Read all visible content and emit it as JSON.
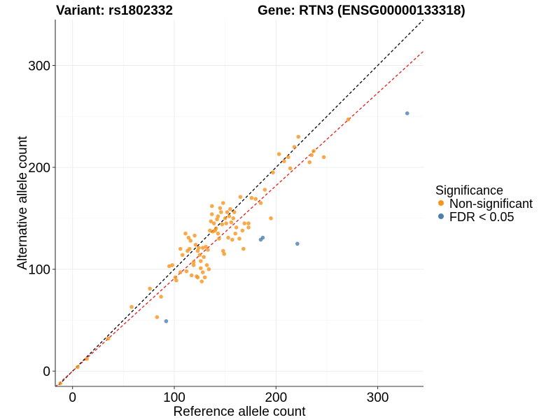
{
  "chart_data": {
    "type": "scatter",
    "title_left": "Variant: rs1802332",
    "title_right": "Gene: RTN3 (ENSG00000133318)",
    "xlabel": "Reference allele count",
    "ylabel": "Alternative allele count",
    "xlim": [
      -17,
      345
    ],
    "ylim": [
      -15,
      345
    ],
    "x_ticks": [
      0,
      100,
      200,
      300
    ],
    "y_ticks": [
      0,
      100,
      200,
      300
    ],
    "x_minor": [
      50,
      150,
      250
    ],
    "y_minor": [
      50,
      150,
      250
    ],
    "grid": true,
    "legend": {
      "title": "Significance",
      "placement": "right",
      "entries": [
        {
          "label": "Non-significant",
          "color": "#f7941d"
        },
        {
          "label": "FDR < 0.05",
          "color": "#4a7fb0"
        }
      ]
    },
    "reference_lines": [
      {
        "slope": 1.0,
        "intercept": 0,
        "color": "#000000",
        "style": "dashed"
      },
      {
        "slope": 0.91,
        "intercept": 0,
        "color": "#e41a1c",
        "style": "dashed"
      }
    ],
    "series": [
      {
        "name": "Non-significant",
        "color": "#f7941d",
        "points": [
          [
            35,
            32
          ],
          [
            58,
            63
          ],
          [
            76,
            81
          ],
          [
            83,
            53
          ],
          [
            87,
            73
          ],
          [
            95,
            103
          ],
          [
            98,
            104
          ],
          [
            101,
            92
          ],
          [
            102,
            89
          ],
          [
            106,
            97
          ],
          [
            106,
            120
          ],
          [
            108,
            114
          ],
          [
            111,
            135
          ],
          [
            112,
            98
          ],
          [
            113,
            118
          ],
          [
            114,
            131
          ],
          [
            115,
            120
          ],
          [
            116,
            128
          ],
          [
            117,
            94
          ],
          [
            119,
            104
          ],
          [
            119,
            107
          ],
          [
            120,
            133
          ],
          [
            121,
            124
          ],
          [
            122,
            93
          ],
          [
            123,
            92
          ],
          [
            123,
            118
          ],
          [
            124,
            121
          ],
          [
            125,
            114
          ],
          [
            126,
            101
          ],
          [
            126,
            108
          ],
          [
            127,
            88
          ],
          [
            128,
            97
          ],
          [
            128,
            121
          ],
          [
            129,
            112
          ],
          [
            130,
            92
          ],
          [
            131,
            122
          ],
          [
            132,
            104
          ],
          [
            133,
            119
          ],
          [
            134,
            100
          ],
          [
            135,
            138
          ],
          [
            136,
            147
          ],
          [
            137,
            154
          ],
          [
            137,
            162
          ],
          [
            138,
            137
          ],
          [
            139,
            145
          ],
          [
            140,
            138
          ],
          [
            141,
            140
          ],
          [
            142,
            149
          ],
          [
            143,
            135
          ],
          [
            143,
            152
          ],
          [
            144,
            130
          ],
          [
            145,
            160
          ],
          [
            146,
            156
          ],
          [
            147,
            144
          ],
          [
            148,
            118
          ],
          [
            148,
            165
          ],
          [
            149,
            115
          ],
          [
            150,
            150
          ],
          [
            151,
            145
          ],
          [
            152,
            156
          ],
          [
            153,
            131
          ],
          [
            154,
            152
          ],
          [
            155,
            159
          ],
          [
            156,
            146
          ],
          [
            157,
            129
          ],
          [
            158,
            150
          ],
          [
            159,
            156
          ],
          [
            160,
            135
          ],
          [
            161,
            141
          ],
          [
            164,
            130
          ],
          [
            165,
            171
          ],
          [
            167,
            138
          ],
          [
            168,
            120
          ],
          [
            169,
            145
          ],
          [
            173,
            145
          ],
          [
            173,
            141
          ],
          [
            176,
            170
          ],
          [
            180,
            169
          ],
          [
            185,
            165
          ],
          [
            189,
            178
          ],
          [
            195,
            150
          ],
          [
            197,
            195
          ],
          [
            203,
            213
          ],
          [
            208,
            206
          ],
          [
            212,
            210
          ],
          [
            214,
            199
          ],
          [
            218,
            220
          ],
          [
            222,
            230
          ],
          [
            233,
            205
          ],
          [
            235,
            212
          ],
          [
            237,
            216
          ],
          [
            247,
            210
          ],
          [
            271,
            247
          ],
          [
            14,
            12
          ],
          [
            5,
            4
          ],
          [
            -12,
            -12
          ]
        ]
      },
      {
        "name": "FDR < 0.05",
        "color": "#4a7fb0",
        "points": [
          [
            92,
            49
          ],
          [
            185,
            129
          ],
          [
            187,
            131
          ],
          [
            221,
            125
          ],
          [
            329,
            253
          ]
        ]
      }
    ]
  }
}
